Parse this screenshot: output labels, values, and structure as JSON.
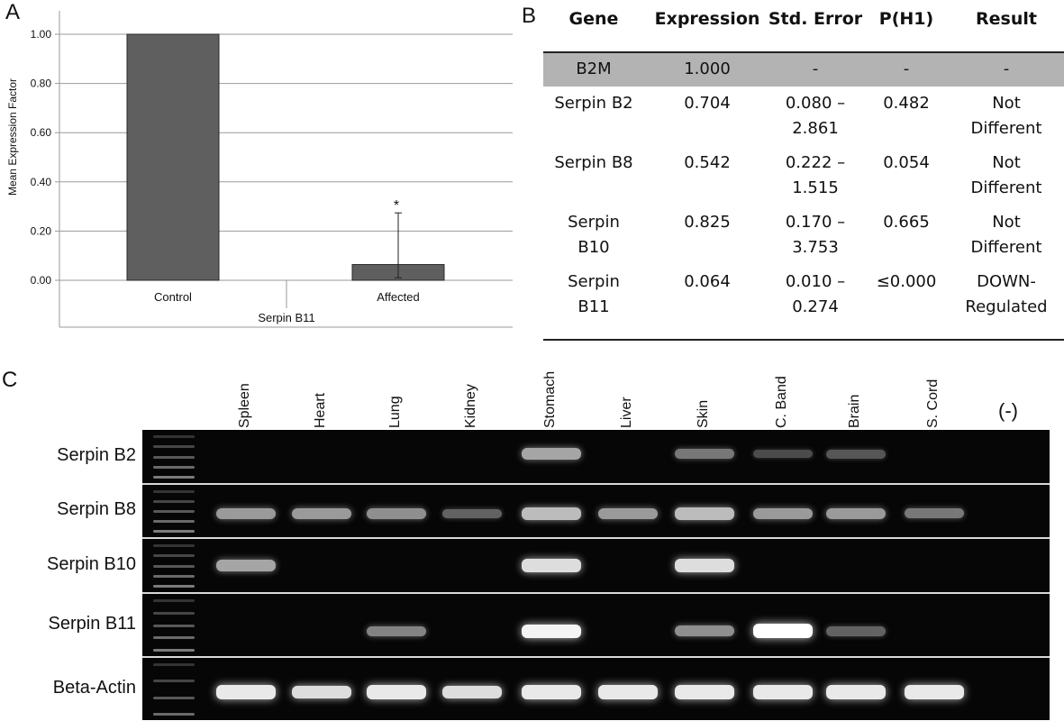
{
  "panels": {
    "a": "A",
    "b": "B",
    "c": "C"
  },
  "chart_data": {
    "type": "bar",
    "ylabel": "Mean Expression Factor",
    "xlabel": "Serpin B11",
    "categories": [
      "Control",
      "Affected"
    ],
    "values": [
      1.0,
      0.064
    ],
    "error_upper": [
      null,
      0.274
    ],
    "error_lower": [
      null,
      0.01
    ],
    "annotations": [
      "",
      "*"
    ],
    "yticks": [
      "0.00",
      "0.20",
      "0.40",
      "0.60",
      "0.80",
      "1.00"
    ],
    "ylim": [
      0,
      1.0
    ],
    "grid": true,
    "bar_color": "#5f5f5f"
  },
  "table": {
    "headers": [
      "Gene",
      "Expression",
      "Std. Error",
      "P(H1)",
      "Result"
    ],
    "rows": [
      {
        "gene": "B2M",
        "expression": "1.000",
        "std_error": "-",
        "p": "-",
        "result": "-"
      },
      {
        "gene": "Serpin B2",
        "expression": "0.704",
        "std_error": "0.080 –\n2.861",
        "p": "0.482",
        "result": "Not\nDifferent"
      },
      {
        "gene": "Serpin B8",
        "expression": "0.542",
        "std_error": "0.222 –\n1.515",
        "p": "0.054",
        "result": "Not\nDifferent"
      },
      {
        "gene": "Serpin\nB10",
        "expression": "0.825",
        "std_error": "0.170 –\n3.753",
        "p": "0.665",
        "result": "Not\nDifferent"
      },
      {
        "gene": "Serpin\nB11",
        "expression": "0.064",
        "std_error": "0.010 –\n0.274",
        "p": "≤0.000",
        "result": "DOWN-\nRegulated"
      }
    ],
    "highlight_color": "#b3b3b3"
  },
  "gel": {
    "lanes": [
      "Spleen",
      "Heart",
      "Lung",
      "Kidney",
      "Stomach",
      "Liver",
      "Skin",
      "C. Band",
      "Brain",
      "S. Cord"
    ],
    "negative_lane": "(-)",
    "genes": [
      "Serpin B2",
      "Serpin B8",
      "Serpin B10",
      "Serpin B11",
      "Beta-Actin"
    ],
    "intensity": [
      [
        0.0,
        0.0,
        0.0,
        0.0,
        0.6,
        0.0,
        0.4,
        0.2,
        0.25,
        0.0
      ],
      [
        0.55,
        0.55,
        0.5,
        0.3,
        0.7,
        0.55,
        0.7,
        0.55,
        0.55,
        0.4
      ],
      [
        0.6,
        0.0,
        0.0,
        0.0,
        0.85,
        0.0,
        0.85,
        0.0,
        0.0,
        0.0
      ],
      [
        0.0,
        0.0,
        0.45,
        0.0,
        0.95,
        0.0,
        0.5,
        1.0,
        0.3,
        0.0
      ],
      [
        0.9,
        0.85,
        0.9,
        0.85,
        0.9,
        0.9,
        0.9,
        0.9,
        0.9,
        0.9
      ]
    ]
  }
}
